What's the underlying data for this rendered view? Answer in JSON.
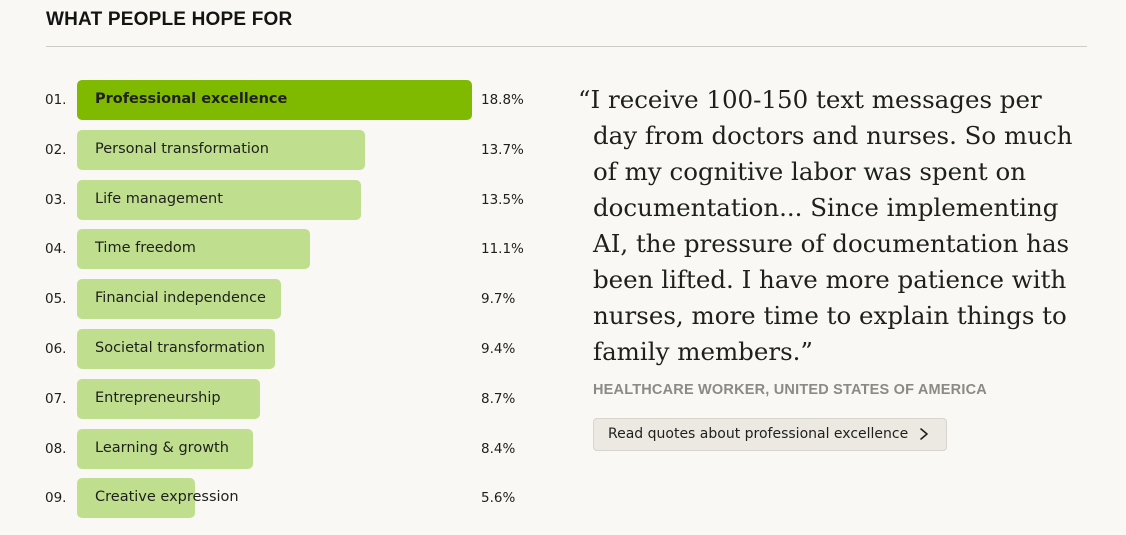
{
  "header": {
    "title": "WHAT PEOPLE HOPE FOR"
  },
  "chart_data": {
    "type": "bar",
    "orientation": "horizontal",
    "title": "WHAT PEOPLE HOPE FOR",
    "ranks": [
      "01.",
      "02.",
      "03.",
      "04.",
      "05.",
      "06.",
      "07.",
      "08.",
      "09."
    ],
    "categories": [
      "Professional excellence",
      "Personal transformation",
      "Life management",
      "Time freedom",
      "Financial independence",
      "Societal transformation",
      "Entrepreneurship",
      "Learning & growth",
      "Creative expression"
    ],
    "values": [
      18.8,
      13.7,
      13.5,
      11.1,
      9.7,
      9.4,
      8.7,
      8.4,
      5.6
    ],
    "value_labels": [
      "18.8%",
      "13.7%",
      "13.5%",
      "11.1%",
      "9.7%",
      "9.4%",
      "8.7%",
      "8.4%",
      "5.6%"
    ],
    "unit": "%",
    "highlighted_index": 0,
    "colors": {
      "highlight": "#7fba00",
      "default": "#bfdf8f"
    }
  },
  "quote": {
    "text": "“I receive 100-150 text messages per day from doctors and nurses. So much of my cognitive labor was spent on documentation... Since implementing AI, the pressure of documentation has been lifted. I have more patience with nurses, more time to explain things to family members.”",
    "attribution": "HEALTHCARE WORKER, UNITED STATES OF AMERICA",
    "button_label": "Read quotes about professional excellence",
    "button_icon": "chevron-right-icon"
  }
}
